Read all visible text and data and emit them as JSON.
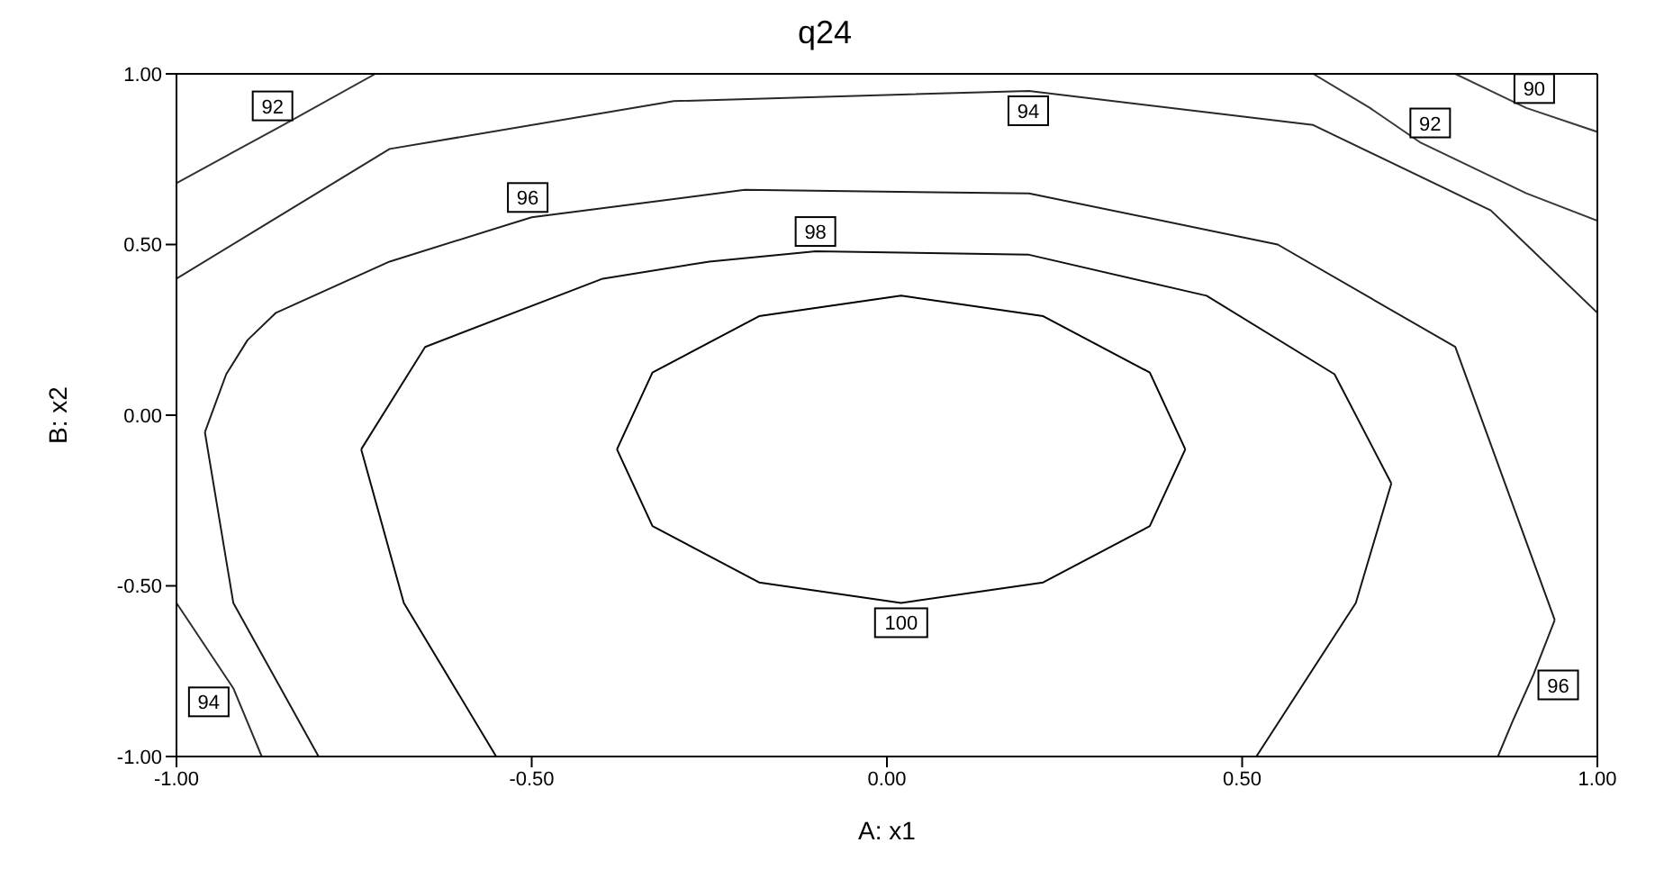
{
  "chart_data": {
    "type": "line",
    "title": "q24",
    "xlabel": "A: x1",
    "ylabel": "B: x2",
    "xlim": [
      -1,
      1
    ],
    "ylim": [
      -1,
      1
    ],
    "xticks": [
      {
        "value": -1,
        "label": "-1.00"
      },
      {
        "value": -0.5,
        "label": "-0.50"
      },
      {
        "value": 0,
        "label": "0.00"
      },
      {
        "value": 0.5,
        "label": "0.50"
      },
      {
        "value": 1,
        "label": "1.00"
      }
    ],
    "yticks": [
      {
        "value": -1,
        "label": "-1.00"
      },
      {
        "value": -0.5,
        "label": "-0.50"
      },
      {
        "value": 0,
        "label": "0.00"
      },
      {
        "value": 0.5,
        "label": "0.50"
      },
      {
        "value": 1,
        "label": "1.00"
      }
    ],
    "grid": false,
    "legend": false,
    "marker": "none",
    "line_style": "solid",
    "series": [
      {
        "color": "#000000",
        "x": [
          -0.38,
          -0.33,
          -0.18,
          0.02,
          0.22,
          0.37,
          0.42
        ],
        "values": [
          -0.1,
          0.125,
          0.29,
          0.35,
          0.29,
          0.125,
          -0.1
        ]
      },
      {
        "name": "100",
        "color": "#050505",
        "x": [
          -0.38,
          -0.33,
          -0.18,
          0.02,
          0.22,
          0.37,
          0.42
        ],
        "values": [
          -0.1,
          -0.325,
          -0.49,
          -0.55,
          -0.49,
          -0.325,
          -0.1
        ]
      },
      {
        "color": "#0a0a0a",
        "x": [
          -0.74,
          -0.68,
          -0.55
        ],
        "values": [
          -0.1,
          -0.55,
          -1
        ]
      },
      {
        "name": "98",
        "color": "#0f0f0f",
        "x": [
          -0.74,
          -0.65,
          -0.4,
          -0.25,
          -0.1,
          0.2,
          0.45,
          0.63,
          0.71
        ],
        "values": [
          -0.1,
          0.2,
          0.4,
          0.45,
          0.48,
          0.47,
          0.35,
          0.12,
          -0.2
        ]
      },
      {
        "color": "#141414",
        "x": [
          0.52,
          0.66,
          0.71
        ],
        "values": [
          -1,
          -0.55,
          -0.2
        ]
      },
      {
        "color": "#191919",
        "x": [
          -0.96,
          -0.92,
          -0.8
        ],
        "values": [
          -0.05,
          -0.55,
          -1
        ]
      },
      {
        "name": "96",
        "color": "#1e1e1e",
        "x": [
          -0.96,
          -0.93,
          -0.9,
          -0.86,
          -0.7,
          -0.5,
          -0.2,
          0.2,
          0.55,
          0.8,
          0.94
        ],
        "values": [
          -0.05,
          0.12,
          0.22,
          0.3,
          0.45,
          0.58,
          0.66,
          0.65,
          0.5,
          0.2,
          -0.6
        ]
      },
      {
        "name": "96",
        "color": "#232323",
        "x": [
          0.86,
          0.88,
          0.91,
          0.94
        ],
        "values": [
          -1,
          -0.9,
          -0.76,
          -0.6
        ]
      },
      {
        "name": "94",
        "color": "#282828",
        "x": [
          -1,
          -0.7,
          -0.3,
          0.2,
          0.6,
          0.85,
          1
        ],
        "values": [
          0.4,
          0.78,
          0.92,
          0.95,
          0.85,
          0.6,
          0.3
        ]
      },
      {
        "name": "94",
        "color": "#2d2d2d",
        "x": [
          -1,
          -0.92,
          -0.88
        ],
        "values": [
          -0.55,
          -0.8,
          -1
        ]
      },
      {
        "name": "92",
        "color": "#323232",
        "x": [
          -1,
          -0.85,
          -0.72
        ],
        "values": [
          0.68,
          0.85,
          1
        ]
      },
      {
        "name": "92",
        "color": "#373737",
        "x": [
          0.6,
          0.68,
          0.75,
          0.9,
          1
        ],
        "values": [
          1,
          0.9,
          0.8,
          0.65,
          0.57
        ]
      },
      {
        "name": "90",
        "color": "#3c3c3c",
        "x": [
          0.8,
          0.9,
          1
        ],
        "values": [
          1,
          0.9,
          0.83
        ]
      }
    ]
  }
}
